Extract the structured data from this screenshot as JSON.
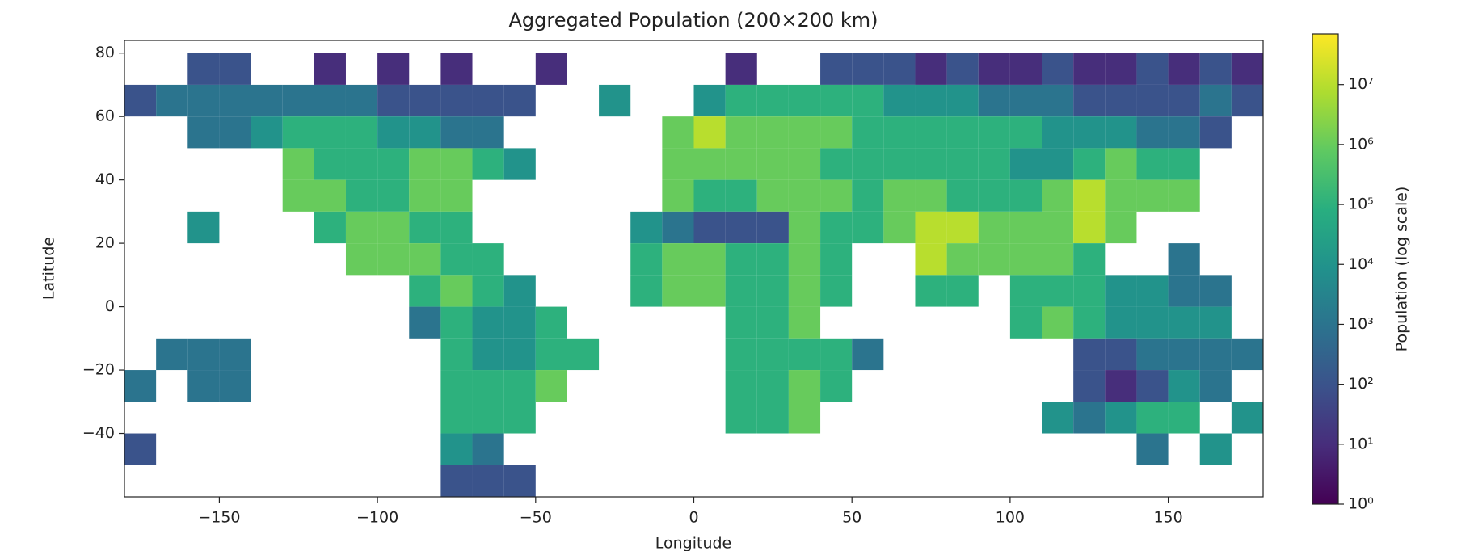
{
  "chart_data": {
    "type": "heatmap",
    "title": "Aggregated Population (200×200 km)",
    "x_label": "Longitude",
    "y_label": "Latitude",
    "colorbar_label": "Population (log scale)",
    "colormap": "viridis",
    "log_scale": true,
    "xlim": [
      -180,
      180
    ],
    "ylim": [
      -60,
      84
    ],
    "xticks": [
      {
        "value": -150,
        "label": "−150"
      },
      {
        "value": -100,
        "label": "−100"
      },
      {
        "value": -50,
        "label": "−50"
      },
      0,
      50,
      100,
      150
    ],
    "yticks": [
      {
        "value": -40,
        "label": "−40"
      },
      {
        "value": -20,
        "label": "−20"
      },
      0,
      20,
      40,
      60,
      80
    ],
    "clim": [
      1,
      70000000
    ],
    "cticks": [
      {
        "value": 1,
        "label": "10⁰"
      },
      {
        "value": 10,
        "label": "10¹"
      },
      {
        "value": 100,
        "label": "10²"
      },
      {
        "value": 1000,
        "label": "10³"
      },
      {
        "value": 10000,
        "label": "10⁴"
      },
      {
        "value": 100000,
        "label": "10⁵"
      },
      {
        "value": 1000000,
        "label": "10⁶"
      },
      {
        "value": 10000000,
        "label": "10⁷"
      }
    ],
    "x_edges": [
      -180,
      -170,
      -160,
      -150,
      -140,
      -130,
      -120,
      -110,
      -100,
      -90,
      -80,
      -70,
      -60,
      -50,
      -40,
      -30,
      -20,
      -10,
      0,
      10,
      20,
      30,
      40,
      50,
      60,
      70,
      80,
      90,
      100,
      110,
      120,
      130,
      140,
      150,
      160,
      170,
      180
    ],
    "y_edges": [
      80,
      70,
      60,
      50,
      40,
      30,
      20,
      10,
      0,
      -10,
      -20,
      -30,
      -40,
      -50,
      -60
    ],
    "values": [
      [
        null,
        null,
        100.0,
        100.0,
        null,
        null,
        10.0,
        null,
        10.0,
        null,
        10.0,
        null,
        null,
        10.0,
        null,
        null,
        null,
        null,
        null,
        10.0,
        null,
        null,
        100.0,
        100.0,
        100.0,
        10.0,
        100.0,
        10.0,
        10.0,
        100.0,
        10.0,
        10.0,
        100.0,
        10.0,
        100.0,
        10.0
      ],
      [
        100.0,
        1000.0,
        1000.0,
        1000.0,
        1000.0,
        1000.0,
        1000.0,
        1000.0,
        100.0,
        100.0,
        100.0,
        100.0,
        100.0,
        null,
        null,
        10000.0,
        null,
        null,
        10000.0,
        100000.0,
        100000.0,
        100000.0,
        100000.0,
        100000.0,
        10000.0,
        10000.0,
        10000.0,
        1000.0,
        1000.0,
        1000.0,
        100.0,
        100.0,
        100.0,
        100.0,
        1000.0,
        100.0
      ],
      [
        null,
        null,
        1000.0,
        1000.0,
        10000.0,
        100000.0,
        100000.0,
        100000.0,
        10000.0,
        10000.0,
        1000.0,
        1000.0,
        null,
        null,
        null,
        null,
        null,
        1000000.0,
        10000000.0,
        1000000.0,
        1000000.0,
        1000000.0,
        1000000.0,
        100000.0,
        100000.0,
        100000.0,
        100000.0,
        100000.0,
        100000.0,
        10000.0,
        10000.0,
        10000.0,
        1000.0,
        1000.0,
        100.0,
        null
      ],
      [
        null,
        null,
        null,
        null,
        null,
        1000000.0,
        100000.0,
        100000.0,
        100000.0,
        1000000.0,
        1000000.0,
        100000.0,
        10000.0,
        null,
        null,
        null,
        null,
        1000000.0,
        1000000.0,
        1000000.0,
        1000000.0,
        1000000.0,
        100000.0,
        100000.0,
        100000.0,
        100000.0,
        100000.0,
        100000.0,
        10000.0,
        10000.0,
        100000.0,
        1000000.0,
        100000.0,
        100000.0,
        null,
        null
      ],
      [
        null,
        null,
        null,
        null,
        null,
        1000000.0,
        1000000.0,
        100000.0,
        100000.0,
        1000000.0,
        1000000.0,
        null,
        null,
        null,
        null,
        null,
        null,
        1000000.0,
        100000.0,
        100000.0,
        1000000.0,
        1000000.0,
        1000000.0,
        100000.0,
        1000000.0,
        1000000.0,
        100000.0,
        100000.0,
        100000.0,
        1000000.0,
        10000000.0,
        1000000.0,
        1000000.0,
        1000000.0,
        null,
        null
      ],
      [
        null,
        null,
        10000.0,
        null,
        null,
        null,
        100000.0,
        1000000.0,
        1000000.0,
        100000.0,
        100000.0,
        null,
        null,
        null,
        null,
        null,
        10000.0,
        1000.0,
        100.0,
        100.0,
        100.0,
        1000000.0,
        100000.0,
        100000.0,
        1000000.0,
        10000000.0,
        10000000.0,
        1000000.0,
        1000000.0,
        1000000.0,
        10000000.0,
        1000000.0,
        null,
        null,
        null,
        null
      ],
      [
        null,
        null,
        null,
        null,
        null,
        null,
        null,
        1000000.0,
        1000000.0,
        1000000.0,
        100000.0,
        100000.0,
        null,
        null,
        null,
        null,
        100000.0,
        1000000.0,
        1000000.0,
        100000.0,
        100000.0,
        1000000.0,
        100000.0,
        null,
        null,
        10000000.0,
        1000000.0,
        1000000.0,
        1000000.0,
        1000000.0,
        100000.0,
        null,
        null,
        1000.0,
        null,
        null
      ],
      [
        null,
        null,
        null,
        null,
        null,
        null,
        null,
        null,
        null,
        100000.0,
        1000000.0,
        100000.0,
        10000.0,
        null,
        null,
        null,
        100000.0,
        1000000.0,
        1000000.0,
        100000.0,
        100000.0,
        1000000.0,
        100000.0,
        null,
        null,
        100000.0,
        100000.0,
        null,
        100000.0,
        100000.0,
        100000.0,
        10000.0,
        10000.0,
        1000.0,
        1000.0,
        null
      ],
      [
        null,
        null,
        null,
        null,
        null,
        null,
        null,
        null,
        null,
        1000.0,
        100000.0,
        10000.0,
        10000.0,
        100000.0,
        null,
        null,
        null,
        null,
        null,
        100000.0,
        100000.0,
        1000000.0,
        null,
        null,
        null,
        null,
        null,
        null,
        100000.0,
        1000000.0,
        100000.0,
        10000.0,
        10000.0,
        10000.0,
        10000.0,
        null
      ],
      [
        null,
        1000.0,
        1000.0,
        1000.0,
        null,
        null,
        null,
        null,
        null,
        null,
        100000.0,
        10000.0,
        10000.0,
        100000.0,
        100000.0,
        null,
        null,
        null,
        null,
        100000.0,
        100000.0,
        100000.0,
        100000.0,
        1000.0,
        null,
        null,
        null,
        null,
        null,
        null,
        100.0,
        100.0,
        1000.0,
        1000.0,
        1000.0,
        1000.0
      ],
      [
        1000.0,
        null,
        1000.0,
        1000.0,
        null,
        null,
        null,
        null,
        null,
        null,
        100000.0,
        100000.0,
        100000.0,
        1000000.0,
        null,
        null,
        null,
        null,
        null,
        100000.0,
        100000.0,
        1000000.0,
        100000.0,
        null,
        null,
        null,
        null,
        null,
        null,
        null,
        100.0,
        10.0,
        100.0,
        10000.0,
        1000.0,
        null
      ],
      [
        null,
        null,
        null,
        null,
        null,
        null,
        null,
        null,
        null,
        null,
        100000.0,
        100000.0,
        100000.0,
        null,
        null,
        null,
        null,
        null,
        null,
        100000.0,
        100000.0,
        1000000.0,
        null,
        null,
        null,
        null,
        null,
        null,
        null,
        10000.0,
        1000.0,
        10000.0,
        100000.0,
        100000.0,
        null,
        10000.0
      ],
      [
        100.0,
        null,
        null,
        null,
        null,
        null,
        null,
        null,
        null,
        null,
        10000.0,
        1000.0,
        null,
        null,
        null,
        null,
        null,
        null,
        null,
        null,
        null,
        null,
        null,
        null,
        null,
        null,
        null,
        null,
        null,
        null,
        null,
        null,
        1000.0,
        null,
        10000.0,
        null
      ],
      [
        null,
        null,
        null,
        null,
        null,
        null,
        null,
        null,
        null,
        null,
        100.0,
        100.0,
        100.0,
        null,
        null,
        null,
        null,
        null,
        null,
        null,
        null,
        null,
        null,
        null,
        null,
        null,
        null,
        null,
        null,
        null,
        null,
        null,
        null,
        null,
        null,
        null
      ]
    ]
  }
}
